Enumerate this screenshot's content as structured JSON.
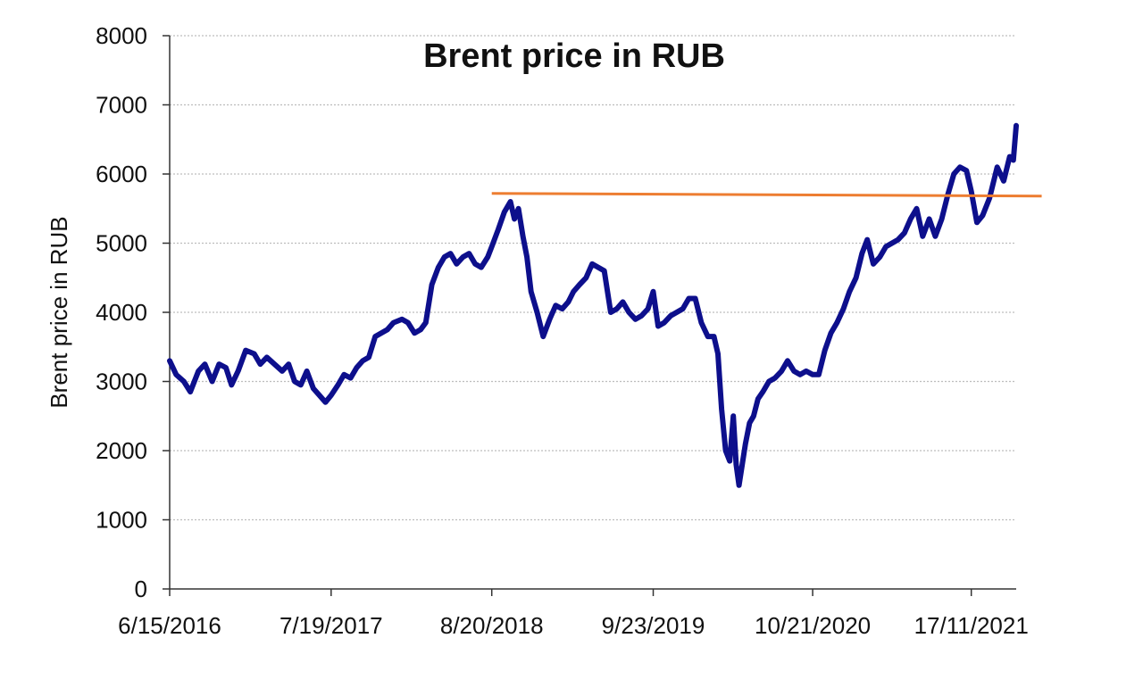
{
  "chart_data": {
    "type": "line",
    "title": "Brent price in RUB",
    "xlabel": "",
    "ylabel": "Brent  price in RUB",
    "ylim": [
      0,
      8000
    ],
    "yticks": [
      0,
      1000,
      2000,
      3000,
      4000,
      5000,
      6000,
      7000,
      8000
    ],
    "ytick_labels": [
      "0",
      "1000",
      "2000",
      "3000",
      "4000",
      "5000",
      "6000",
      "7000",
      "8000"
    ],
    "xlim": [
      "2016-06-15",
      "2022-03-08"
    ],
    "xticks": [
      "2016-06-15",
      "2017-07-19",
      "2018-08-20",
      "2019-09-23",
      "2020-10-21",
      "2021-11-17"
    ],
    "xtick_labels": [
      "6/15/2016",
      "7/19/2017",
      "8/20/2018",
      "9/23/2019",
      "10/21/2020",
      "17/11/2021"
    ],
    "grid": true,
    "series": [
      {
        "color": "#0d0f8c",
        "points": [
          [
            "2016-06-15",
            3300
          ],
          [
            "2016-07-01",
            3100
          ],
          [
            "2016-07-20",
            3000
          ],
          [
            "2016-08-05",
            2850
          ],
          [
            "2016-08-25",
            3150
          ],
          [
            "2016-09-10",
            3250
          ],
          [
            "2016-09-28",
            3000
          ],
          [
            "2016-10-15",
            3250
          ],
          [
            "2016-11-01",
            3200
          ],
          [
            "2016-11-15",
            2950
          ],
          [
            "2016-12-01",
            3150
          ],
          [
            "2016-12-20",
            3450
          ],
          [
            "2017-01-10",
            3400
          ],
          [
            "2017-01-25",
            3250
          ],
          [
            "2017-02-10",
            3350
          ],
          [
            "2017-03-01",
            3250
          ],
          [
            "2017-03-20",
            3150
          ],
          [
            "2017-04-05",
            3250
          ],
          [
            "2017-04-20",
            3000
          ],
          [
            "2017-05-05",
            2950
          ],
          [
            "2017-05-20",
            3150
          ],
          [
            "2017-06-05",
            2900
          ],
          [
            "2017-06-20",
            2800
          ],
          [
            "2017-07-05",
            2700
          ],
          [
            "2017-07-19",
            2800
          ],
          [
            "2017-08-05",
            2950
          ],
          [
            "2017-08-20",
            3100
          ],
          [
            "2017-09-05",
            3050
          ],
          [
            "2017-09-20",
            3200
          ],
          [
            "2017-10-05",
            3300
          ],
          [
            "2017-10-20",
            3350
          ],
          [
            "2017-11-05",
            3650
          ],
          [
            "2017-11-20",
            3700
          ],
          [
            "2017-12-05",
            3750
          ],
          [
            "2017-12-20",
            3850
          ],
          [
            "2018-01-10",
            3900
          ],
          [
            "2018-01-25",
            3850
          ],
          [
            "2018-02-10",
            3700
          ],
          [
            "2018-02-25",
            3750
          ],
          [
            "2018-03-10",
            3850
          ],
          [
            "2018-03-25",
            4400
          ],
          [
            "2018-04-10",
            4650
          ],
          [
            "2018-04-25",
            4800
          ],
          [
            "2018-05-10",
            4850
          ],
          [
            "2018-05-25",
            4700
          ],
          [
            "2018-06-10",
            4800
          ],
          [
            "2018-06-25",
            4850
          ],
          [
            "2018-07-10",
            4700
          ],
          [
            "2018-07-25",
            4650
          ],
          [
            "2018-08-10",
            4800
          ],
          [
            "2018-08-20",
            4950
          ],
          [
            "2018-09-05",
            5200
          ],
          [
            "2018-09-20",
            5450
          ],
          [
            "2018-10-05",
            5600
          ],
          [
            "2018-10-15",
            5350
          ],
          [
            "2018-10-25",
            5500
          ],
          [
            "2018-11-05",
            5100
          ],
          [
            "2018-11-15",
            4800
          ],
          [
            "2018-11-25",
            4300
          ],
          [
            "2018-12-10",
            4000
          ],
          [
            "2018-12-25",
            3650
          ],
          [
            "2019-01-10",
            3900
          ],
          [
            "2019-01-25",
            4100
          ],
          [
            "2019-02-10",
            4050
          ],
          [
            "2019-02-25",
            4150
          ],
          [
            "2019-03-10",
            4300
          ],
          [
            "2019-03-25",
            4400
          ],
          [
            "2019-04-10",
            4500
          ],
          [
            "2019-04-25",
            4700
          ],
          [
            "2019-05-10",
            4650
          ],
          [
            "2019-05-25",
            4600
          ],
          [
            "2019-06-10",
            4000
          ],
          [
            "2019-06-25",
            4050
          ],
          [
            "2019-07-10",
            4150
          ],
          [
            "2019-07-25",
            4000
          ],
          [
            "2019-08-10",
            3900
          ],
          [
            "2019-08-25",
            3950
          ],
          [
            "2019-09-10",
            4050
          ],
          [
            "2019-09-23",
            4300
          ],
          [
            "2019-10-05",
            3800
          ],
          [
            "2019-10-20",
            3850
          ],
          [
            "2019-11-05",
            3950
          ],
          [
            "2019-11-20",
            4000
          ],
          [
            "2019-12-05",
            4050
          ],
          [
            "2019-12-20",
            4200
          ],
          [
            "2020-01-05",
            4200
          ],
          [
            "2020-01-20",
            3850
          ],
          [
            "2020-02-05",
            3650
          ],
          [
            "2020-02-20",
            3650
          ],
          [
            "2020-03-01",
            3400
          ],
          [
            "2020-03-10",
            2600
          ],
          [
            "2020-03-20",
            2000
          ],
          [
            "2020-03-30",
            1850
          ],
          [
            "2020-04-08",
            2500
          ],
          [
            "2020-04-15",
            1800
          ],
          [
            "2020-04-22",
            1500
          ],
          [
            "2020-04-30",
            1800
          ],
          [
            "2020-05-08",
            2100
          ],
          [
            "2020-05-18",
            2400
          ],
          [
            "2020-05-28",
            2500
          ],
          [
            "2020-06-08",
            2750
          ],
          [
            "2020-06-20",
            2850
          ],
          [
            "2020-07-05",
            3000
          ],
          [
            "2020-07-20",
            3050
          ],
          [
            "2020-08-05",
            3150
          ],
          [
            "2020-08-20",
            3300
          ],
          [
            "2020-09-05",
            3150
          ],
          [
            "2020-09-20",
            3100
          ],
          [
            "2020-10-05",
            3150
          ],
          [
            "2020-10-21",
            3100
          ],
          [
            "2020-11-05",
            3100
          ],
          [
            "2020-11-20",
            3450
          ],
          [
            "2020-12-05",
            3700
          ],
          [
            "2020-12-20",
            3850
          ],
          [
            "2021-01-05",
            4050
          ],
          [
            "2021-01-20",
            4300
          ],
          [
            "2021-02-05",
            4500
          ],
          [
            "2021-02-20",
            4850
          ],
          [
            "2021-03-05",
            5050
          ],
          [
            "2021-03-20",
            4700
          ],
          [
            "2021-04-05",
            4800
          ],
          [
            "2021-04-20",
            4950
          ],
          [
            "2021-05-05",
            5000
          ],
          [
            "2021-05-20",
            5050
          ],
          [
            "2021-06-05",
            5150
          ],
          [
            "2021-06-20",
            5350
          ],
          [
            "2021-07-05",
            5500
          ],
          [
            "2021-07-20",
            5100
          ],
          [
            "2021-08-05",
            5350
          ],
          [
            "2021-08-20",
            5100
          ],
          [
            "2021-09-05",
            5350
          ],
          [
            "2021-09-20",
            5700
          ],
          [
            "2021-10-05",
            6000
          ],
          [
            "2021-10-20",
            6100
          ],
          [
            "2021-11-05",
            6050
          ],
          [
            "2021-11-17",
            5750
          ],
          [
            "2021-12-01",
            5300
          ],
          [
            "2021-12-15",
            5400
          ],
          [
            "2022-01-01",
            5650
          ],
          [
            "2022-01-20",
            6100
          ],
          [
            "2022-02-05",
            5900
          ],
          [
            "2022-02-20",
            6250
          ],
          [
            "2022-03-01",
            6200
          ],
          [
            "2022-03-08",
            6700
          ]
        ]
      }
    ],
    "reference_line": {
      "color": "#ed7d31",
      "start": [
        "2018-08-20",
        5720
      ],
      "end": [
        "2022-05-10",
        5680
      ]
    }
  }
}
